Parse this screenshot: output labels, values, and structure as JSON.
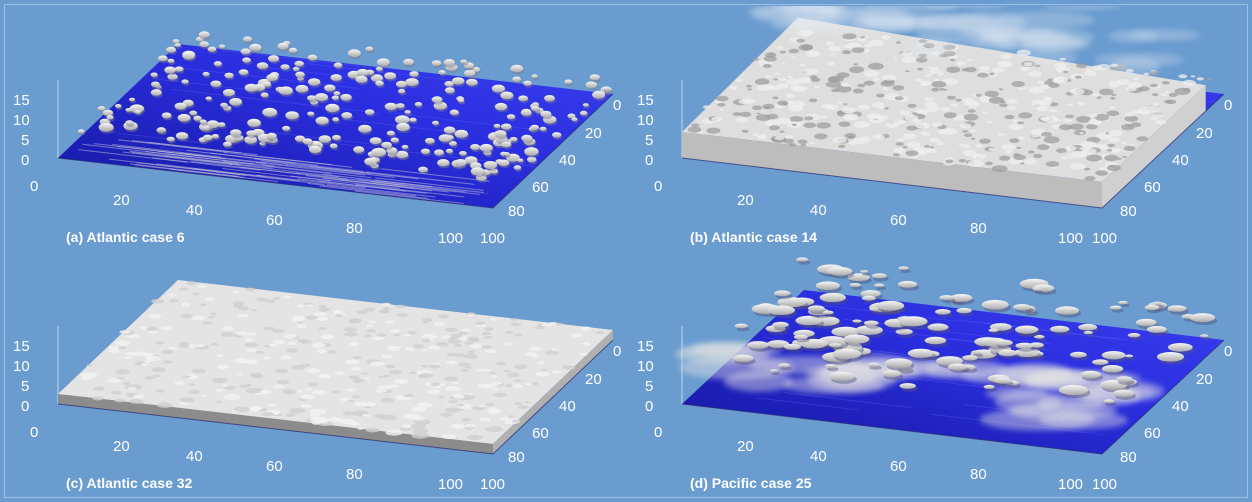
{
  "panels": [
    {
      "id": "a",
      "caption": "(a) Atlantic case 6",
      "cover": "scattered"
    },
    {
      "id": "b",
      "caption": "(b) Atlantic case 14",
      "cover": "thick"
    },
    {
      "id": "c",
      "caption": "(c) Atlantic case 32",
      "cover": "flat"
    },
    {
      "id": "d",
      "caption": "(d) Pacific case 25",
      "cover": "broken"
    }
  ],
  "axes": {
    "z_ticks": [
      "15",
      "10",
      "5",
      "0"
    ],
    "x_ticks": [
      "0",
      "20",
      "40",
      "60",
      "80",
      "100"
    ],
    "y_ticks": [
      "0",
      "20",
      "40",
      "60",
      "80",
      "100"
    ]
  },
  "colors": {
    "background": "#6a9ccf",
    "ocean": "#2b2fe0",
    "ocean_dark": "#14169e",
    "cloud": "#e9e9e9",
    "cloud_shadow": "#a9a9a9",
    "text": "#ffffff"
  }
}
